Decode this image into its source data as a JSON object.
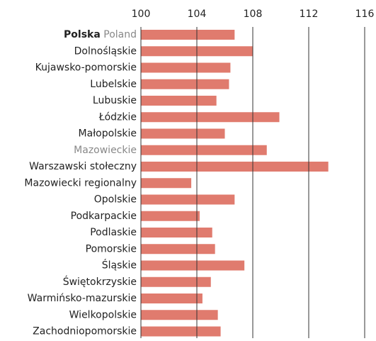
{
  "chart_data": {
    "type": "bar",
    "orientation": "horizontal",
    "categories": [
      "Polska",
      "Dolnośląskie",
      "Kujawsko-pomorskie",
      "Lubelskie",
      "Lubuskie",
      "Łódzkie",
      "Małopolskie",
      "Mazowieckie",
      "Warszawski stołeczny",
      "Mazowiecki regionalny",
      "Opolskie",
      "Podkarpackie",
      "Podlaskie",
      "Pomorskie",
      "Śląskie",
      "Świętokrzyskie",
      "Warmińsko-mazurskie",
      "Wielkopolskie",
      "Zachodniopomorskie"
    ],
    "category_0_english": "Poland",
    "bold_categories": [
      0
    ],
    "muted_categories": [
      7
    ],
    "values": [
      106.7,
      108.0,
      106.4,
      106.3,
      105.4,
      109.9,
      106.0,
      109.0,
      113.4,
      103.6,
      106.7,
      104.2,
      105.1,
      105.3,
      107.4,
      105.0,
      104.4,
      105.5,
      105.7
    ],
    "color": "#e07b6e",
    "xlim": [
      100,
      116
    ],
    "xticks": [
      100,
      104,
      108,
      112,
      116
    ],
    "grid": true
  }
}
